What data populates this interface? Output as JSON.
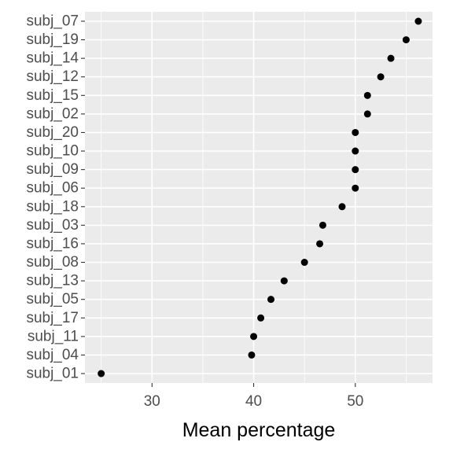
{
  "chart_data": {
    "type": "scatter",
    "title": "",
    "xlabel": "Mean percentage",
    "ylabel": "",
    "xlim": [
      23.4,
      57.6
    ],
    "x_ticks": [
      30,
      40,
      50
    ],
    "x_tick_labels": [
      "30",
      "40",
      "50"
    ],
    "grid": true,
    "categories": [
      "subj_07",
      "subj_19",
      "subj_14",
      "subj_12",
      "subj_15",
      "subj_02",
      "subj_20",
      "subj_10",
      "subj_09",
      "subj_06",
      "subj_18",
      "subj_03",
      "subj_16",
      "subj_08",
      "subj_13",
      "subj_05",
      "subj_17",
      "subj_11",
      "subj_04",
      "subj_01"
    ],
    "values": [
      56.2,
      55.0,
      53.5,
      52.5,
      51.2,
      51.2,
      50.0,
      50.0,
      50.0,
      50.0,
      48.7,
      46.8,
      46.5,
      45.0,
      43.0,
      41.7,
      40.7,
      40.0,
      39.8,
      25.0
    ],
    "colors": {
      "panel": "#ebebeb",
      "grid_major": "#ffffff",
      "point": "#000000"
    }
  }
}
